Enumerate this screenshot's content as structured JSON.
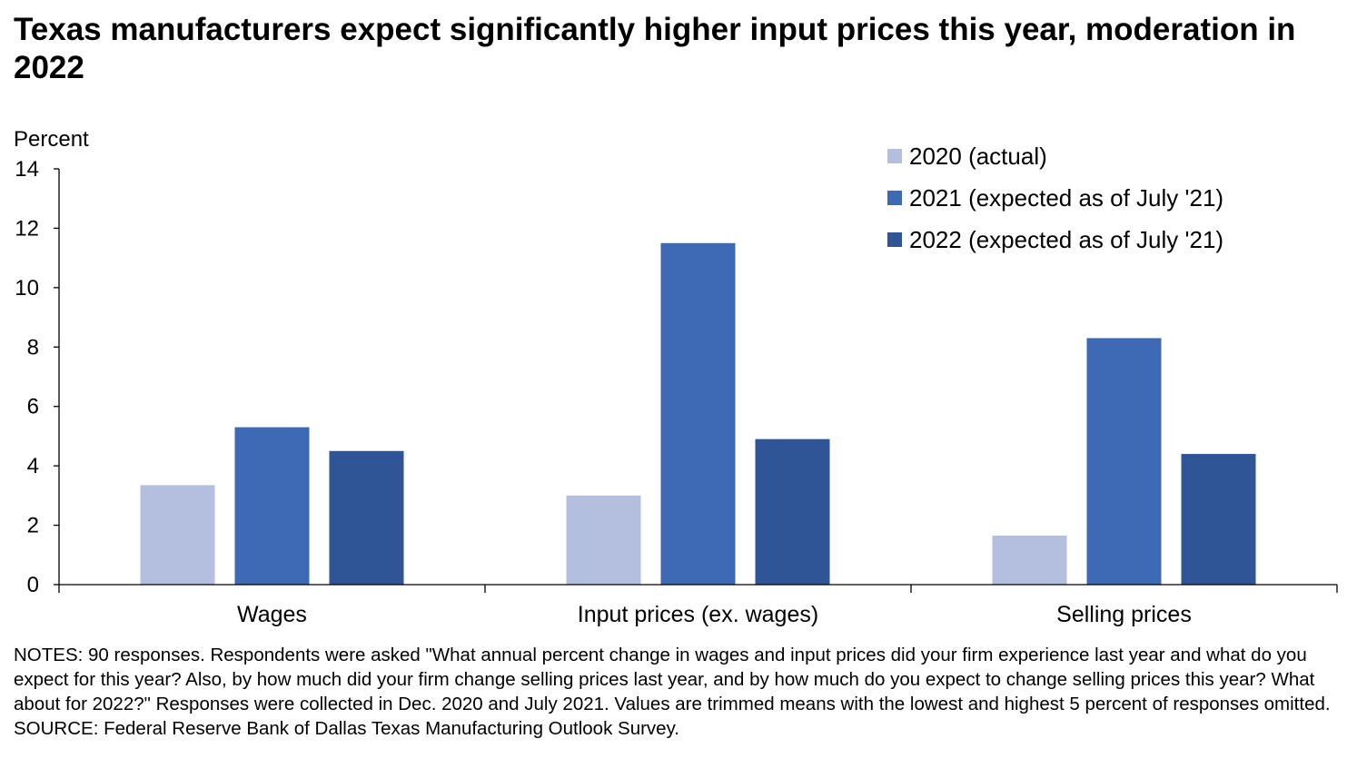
{
  "chart_data": {
    "type": "bar",
    "title": "Texas manufacturers expect significantly higher input prices this year, moderation in 2022",
    "ylabel": "Percent",
    "xlabel": "",
    "ylim": [
      0,
      14
    ],
    "yticks": [
      0,
      2,
      4,
      6,
      8,
      10,
      12,
      14
    ],
    "categories": [
      "Wages",
      "Input prices (ex. wages)",
      "Selling prices"
    ],
    "series": [
      {
        "name": "2020 (actual)",
        "color": "#b4bfdf",
        "values": [
          3.35,
          3.0,
          1.65
        ]
      },
      {
        "name": "2021 (expected as of July '21)",
        "color": "#3e69b5",
        "values": [
          5.3,
          11.5,
          8.3
        ]
      },
      {
        "name": "2022 (expected as of July '21)",
        "color": "#2f5597",
        "values": [
          4.5,
          4.9,
          4.4
        ]
      }
    ],
    "grid": false,
    "legend_position": "top-right"
  },
  "notes": {
    "notes_text": "NOTES: 90 responses. Respondents were asked \"What annual percent change in wages and input prices did your firm experience last year and what do you expect for this year? Also, by how much did your firm change selling prices last year, and by how much do you expect to change selling prices this year? What about for 2022?\" Responses were collected in Dec. 2020 and July 2021. Values are trimmed means with the lowest and highest 5 percent of responses omitted.",
    "source_text": "SOURCE: Federal Reserve Bank of Dallas Texas Manufacturing Outlook Survey."
  }
}
